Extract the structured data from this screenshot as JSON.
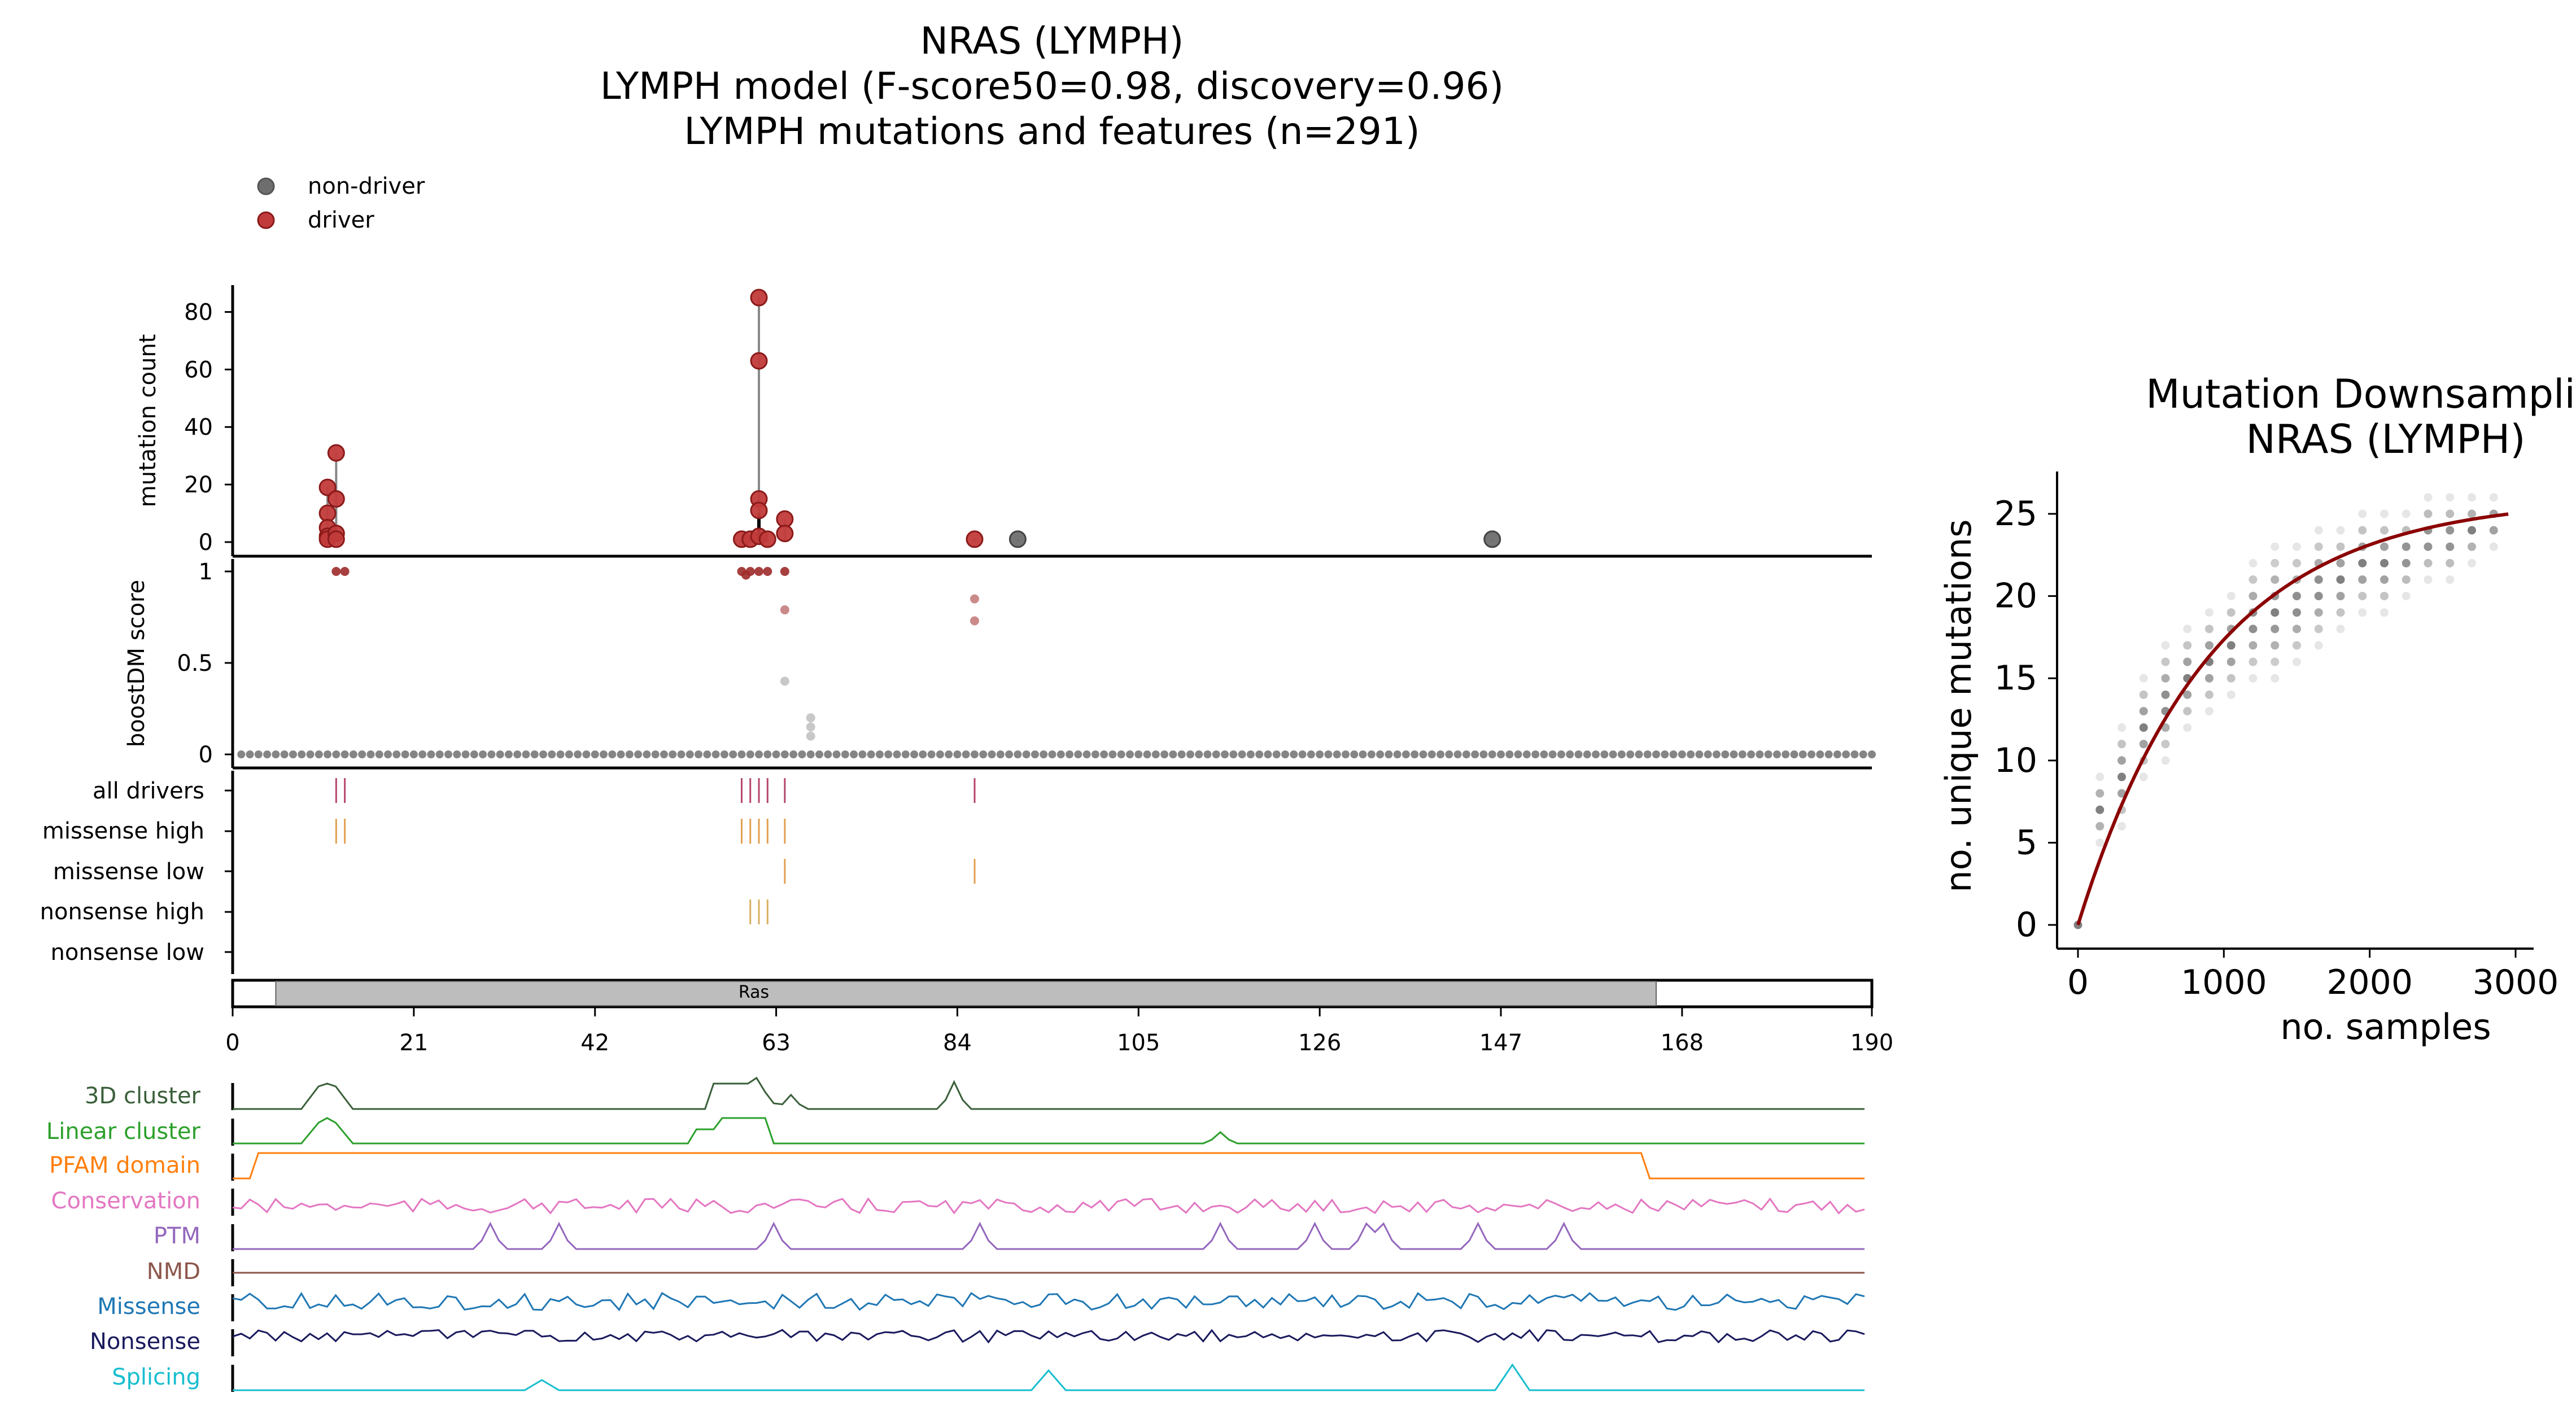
{
  "title": {
    "line1": "NRAS (LYMPH)",
    "line2": "LYMPH model (F-score50=0.98, discovery=0.96)",
    "line3": "LYMPH mutations and features (n=291)"
  },
  "legend": {
    "items": [
      {
        "label": "non-driver",
        "color": "#6e6e6e"
      },
      {
        "label": "driver",
        "color": "#b22222"
      }
    ]
  },
  "chart_data": [
    {
      "type": "scatter",
      "name": "mutation-count-lollipop",
      "ylabel": "mutation count",
      "ylim": [
        0,
        90
      ],
      "yticks": [
        0,
        20,
        40,
        60,
        80
      ],
      "xlim": [
        0,
        190
      ],
      "points": [
        {
          "x": 11,
          "y": 19,
          "driver": true
        },
        {
          "x": 11,
          "y": 10,
          "driver": true
        },
        {
          "x": 11,
          "y": 5,
          "driver": true
        },
        {
          "x": 11,
          "y": 2,
          "driver": true
        },
        {
          "x": 11,
          "y": 1,
          "driver": true
        },
        {
          "x": 12,
          "y": 31,
          "driver": true
        },
        {
          "x": 12,
          "y": 15,
          "driver": true
        },
        {
          "x": 12,
          "y": 3,
          "driver": true
        },
        {
          "x": 12,
          "y": 1,
          "driver": true
        },
        {
          "x": 59,
          "y": 1,
          "driver": true
        },
        {
          "x": 60,
          "y": 1,
          "driver": true
        },
        {
          "x": 61,
          "y": 85,
          "driver": true
        },
        {
          "x": 61,
          "y": 63,
          "driver": true
        },
        {
          "x": 61,
          "y": 15,
          "driver": true
        },
        {
          "x": 61,
          "y": 11,
          "driver": true
        },
        {
          "x": 61,
          "y": 2,
          "driver": true
        },
        {
          "x": 62,
          "y": 1,
          "driver": true
        },
        {
          "x": 64,
          "y": 8,
          "driver": true
        },
        {
          "x": 64,
          "y": 3,
          "driver": true
        },
        {
          "x": 86,
          "y": 1,
          "driver": true
        },
        {
          "x": 91,
          "y": 1,
          "driver": false
        },
        {
          "x": 146,
          "y": 1,
          "driver": false
        }
      ]
    },
    {
      "type": "scatter",
      "name": "boostdm-score",
      "ylabel": "boostDM score",
      "ylim": [
        0,
        1
      ],
      "yticks": [
        0,
        0.5,
        1
      ],
      "xlim": [
        0,
        190
      ],
      "background_score": 0,
      "points": [
        {
          "x": 12,
          "y": 1.0
        },
        {
          "x": 13,
          "y": 1.0
        },
        {
          "x": 59,
          "y": 1.0
        },
        {
          "x": 59.5,
          "y": 0.98
        },
        {
          "x": 60,
          "y": 1.0
        },
        {
          "x": 61,
          "y": 1.0
        },
        {
          "x": 62,
          "y": 1.0
        },
        {
          "x": 64,
          "y": 1.0
        },
        {
          "x": 64,
          "y": 0.79
        },
        {
          "x": 64,
          "y": 0.4
        },
        {
          "x": 67,
          "y": 0.2
        },
        {
          "x": 67,
          "y": 0.15
        },
        {
          "x": 67,
          "y": 0.1
        },
        {
          "x": 86,
          "y": 0.85
        },
        {
          "x": 86,
          "y": 0.73
        }
      ]
    },
    {
      "type": "table",
      "name": "driver-tracks",
      "rows": [
        {
          "label": "all drivers",
          "positions": [
            12,
            13,
            59,
            60,
            61,
            62,
            64,
            86
          ],
          "color": "#b5476a"
        },
        {
          "label": "missense high",
          "positions": [
            12,
            13,
            59,
            60,
            61,
            62,
            64
          ],
          "color": "#e2a050"
        },
        {
          "label": "missense low",
          "positions": [
            64,
            86
          ],
          "color": "#e2a050"
        },
        {
          "label": "nonsense high",
          "positions": [
            60,
            61,
            62
          ],
          "color": "#d9b060"
        },
        {
          "label": "nonsense low",
          "positions": [],
          "color": "#d9b060"
        }
      ]
    },
    {
      "type": "bar",
      "name": "domain-track",
      "xlim": [
        0,
        190
      ],
      "xticks": [
        0,
        21,
        42,
        63,
        84,
        105,
        126,
        147,
        168,
        190
      ],
      "domains": [
        {
          "label": "Ras",
          "start": 5,
          "end": 165
        }
      ]
    },
    {
      "type": "line",
      "name": "feature-tracks",
      "tracks": [
        {
          "label": "3D cluster",
          "color": "#3a5f3a"
        },
        {
          "label": "Linear cluster",
          "color": "#2ca02c"
        },
        {
          "label": "PFAM domain",
          "color": "#ff7f0e"
        },
        {
          "label": "Conservation",
          "color": "#e377c2"
        },
        {
          "label": "PTM",
          "color": "#9467bd"
        },
        {
          "label": "NMD",
          "color": "#8c564b"
        },
        {
          "label": "Missense",
          "color": "#1f77b4"
        },
        {
          "label": "Nonsense",
          "color": "#1a1a5e"
        },
        {
          "label": "Splicing",
          "color": "#17becf"
        }
      ]
    },
    {
      "type": "scatter",
      "name": "mutation-downsampling",
      "title_line1": "Mutation Downsampling",
      "title_line2": "NRAS (LYMPH)",
      "xlabel": "no. samples",
      "ylabel": "no. unique mutations",
      "xlim": [
        -100,
        3150
      ],
      "ylim": [
        -1.5,
        27.5
      ],
      "xticks": [
        0,
        1000,
        2000,
        3000
      ],
      "yticks": [
        0,
        5,
        10,
        15,
        20,
        25
      ],
      "fit": {
        "asymptote": 26,
        "rate": 0.0011
      },
      "sample_sizes": [
        0,
        150,
        300,
        450,
        600,
        750,
        900,
        1050,
        1200,
        1350,
        1500,
        1650,
        1800,
        1950,
        2100,
        2250,
        2400,
        2550,
        2700,
        2850
      ],
      "unique_mutation_ranges": [
        [
          0,
          0
        ],
        [
          5,
          9
        ],
        [
          6,
          12
        ],
        [
          9,
          15
        ],
        [
          10,
          17
        ],
        [
          12,
          18
        ],
        [
          13,
          19
        ],
        [
          14,
          20
        ],
        [
          15,
          22
        ],
        [
          15,
          23
        ],
        [
          16,
          23
        ],
        [
          17,
          24
        ],
        [
          18,
          24
        ],
        [
          19,
          25
        ],
        [
          19,
          25
        ],
        [
          20,
          25
        ],
        [
          21,
          26
        ],
        [
          21,
          26
        ],
        [
          22,
          26
        ],
        [
          23,
          26
        ]
      ]
    }
  ]
}
